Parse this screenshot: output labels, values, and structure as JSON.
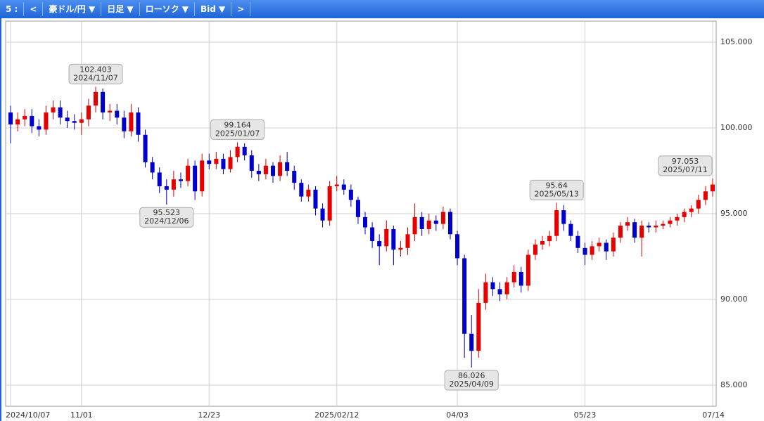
{
  "toolbar": {
    "items": [
      "5 :",
      "<",
      "豪ドル/円 ▼",
      "日足 ▼",
      "ローソク ▼",
      "Bid ▼",
      ">"
    ]
  },
  "chart_data": {
    "type": "candlestick",
    "up_color": "#e60000",
    "down_color": "#0000cc",
    "grid": true,
    "categories": [
      "2024/10/07",
      null,
      null,
      null,
      null,
      null,
      null,
      null,
      null,
      null,
      "11/01",
      null,
      null,
      null,
      null,
      null,
      null,
      null,
      null,
      null,
      null,
      null,
      null,
      null,
      null,
      null,
      null,
      null,
      "12/23",
      null,
      null,
      null,
      null,
      null,
      null,
      null,
      null,
      null,
      null,
      null,
      null,
      null,
      null,
      null,
      null,
      null,
      "2025/02/12",
      null,
      null,
      null,
      null,
      null,
      null,
      null,
      null,
      null,
      null,
      null,
      null,
      null,
      null,
      null,
      null,
      "04/03",
      null,
      null,
      null,
      null,
      null,
      null,
      null,
      null,
      null,
      null,
      null,
      null,
      null,
      null,
      null,
      null,
      null,
      "05/23",
      null,
      null,
      null,
      null,
      null,
      null,
      null,
      null,
      null,
      null,
      null,
      null,
      null,
      null,
      null,
      null,
      null,
      "07/14"
    ],
    "open": [
      100.9,
      100.2,
      100.5,
      100.7,
      100.1,
      99.9,
      100.9,
      101.2,
      100.6,
      100.4,
      100.3,
      100.5,
      101.3,
      102.1,
      100.9,
      101.0,
      100.6,
      99.8,
      100.9,
      99.6,
      98.0,
      97.4,
      96.6,
      96.4,
      97.0,
      96.9,
      97.8,
      96.3,
      98.1,
      97.9,
      98.2,
      97.6,
      98.3,
      98.9,
      98.4,
      97.5,
      97.3,
      97.8,
      97.2,
      98.0,
      97.5,
      96.8,
      96.0,
      96.4,
      95.3,
      94.6,
      96.6,
      96.7,
      96.4,
      95.8,
      94.8,
      94.2,
      93.4,
      93.1,
      94.1,
      92.9,
      93.0,
      93.8,
      94.8,
      94.1,
      94.6,
      94.4,
      95.1,
      93.8,
      92.4,
      88.0,
      87.0,
      89.8,
      91.0,
      90.6,
      90.3,
      91.0,
      91.6,
      90.8,
      92.6,
      93.2,
      93.4,
      93.7,
      95.2,
      94.4,
      93.7,
      93.0,
      92.6,
      93.1,
      93.3,
      92.8,
      93.6,
      94.3,
      94.5,
      93.6,
      94.3,
      94.2,
      94.3,
      94.4,
      94.6,
      94.8,
      95.1,
      95.3,
      95.8,
      96.3
    ],
    "high": [
      101.3,
      100.9,
      101.1,
      101.1,
      100.5,
      101.3,
      101.6,
      101.6,
      101.0,
      100.8,
      100.9,
      101.7,
      102.403,
      102.3,
      101.4,
      101.4,
      101.0,
      101.4,
      101.2,
      99.9,
      98.3,
      97.7,
      97.0,
      97.5,
      97.4,
      98.2,
      98.1,
      98.5,
      98.5,
      98.6,
      98.5,
      98.7,
      99.164,
      99.1,
      98.7,
      97.9,
      98.2,
      98.0,
      98.4,
      98.6,
      97.8,
      97.0,
      96.7,
      96.6,
      95.6,
      96.9,
      97.2,
      97.0,
      96.7,
      96.0,
      95.1,
      94.5,
      93.8,
      94.6,
      94.3,
      93.4,
      94.2,
      95.6,
      95.1,
      95.0,
      94.9,
      95.4,
      95.3,
      94.0,
      92.6,
      89.1,
      90.6,
      91.5,
      91.3,
      91.0,
      91.3,
      92.0,
      91.9,
      92.9,
      93.5,
      93.7,
      94.0,
      95.64,
      95.5,
      94.6,
      94.0,
      93.3,
      93.4,
      93.6,
      93.5,
      93.9,
      94.5,
      94.8,
      94.7,
      94.6,
      94.5,
      94.6,
      94.6,
      94.8,
      95.0,
      95.3,
      95.5,
      96.1,
      96.6,
      97.053
    ],
    "low": [
      99.1,
      99.8,
      100.1,
      99.7,
      99.5,
      99.6,
      100.5,
      100.2,
      100.0,
      99.9,
      99.6,
      100.1,
      100.9,
      100.5,
      100.4,
      100.2,
      99.4,
      99.5,
      99.2,
      97.7,
      97.0,
      96.2,
      95.523,
      96.0,
      96.5,
      96.6,
      95.8,
      96.0,
      97.6,
      97.6,
      97.3,
      97.4,
      98.0,
      98.1,
      97.1,
      96.9,
      97.0,
      96.8,
      96.9,
      97.2,
      96.4,
      95.7,
      95.7,
      94.9,
      94.2,
      94.3,
      96.3,
      96.1,
      95.4,
      94.4,
      93.8,
      93.0,
      92.0,
      92.8,
      92.0,
      92.5,
      92.6,
      93.4,
      93.7,
      93.8,
      94.0,
      94.1,
      93.5,
      92.0,
      86.6,
      86.026,
      86.6,
      89.4,
      90.2,
      89.9,
      90.0,
      90.7,
      90.4,
      90.5,
      92.3,
      92.9,
      93.1,
      93.4,
      94.0,
      93.4,
      92.7,
      92.0,
      92.3,
      92.8,
      92.3,
      92.5,
      93.3,
      94.0,
      93.3,
      92.5,
      93.9,
      93.9,
      94.1,
      94.2,
      94.3,
      94.5,
      94.8,
      95.0,
      95.5,
      96.0
    ],
    "close": [
      100.2,
      100.5,
      100.7,
      100.1,
      99.9,
      100.9,
      101.2,
      100.6,
      100.4,
      100.3,
      100.5,
      101.3,
      102.1,
      100.9,
      101.0,
      100.6,
      99.8,
      100.9,
      99.6,
      98.0,
      97.4,
      96.6,
      96.4,
      97.0,
      96.9,
      97.8,
      96.3,
      98.1,
      97.9,
      98.2,
      97.6,
      98.3,
      98.9,
      98.4,
      97.5,
      97.3,
      97.8,
      97.2,
      98.0,
      97.5,
      96.8,
      96.0,
      96.4,
      95.3,
      94.6,
      96.6,
      96.7,
      96.4,
      95.8,
      94.8,
      94.2,
      93.4,
      93.1,
      94.1,
      92.9,
      93.0,
      93.8,
      94.8,
      94.1,
      94.6,
      94.4,
      95.1,
      93.8,
      92.4,
      88.0,
      87.0,
      89.8,
      91.0,
      90.6,
      90.3,
      91.0,
      91.6,
      90.8,
      92.6,
      93.2,
      93.4,
      93.7,
      95.2,
      94.4,
      93.7,
      93.0,
      92.6,
      93.1,
      93.3,
      92.8,
      93.6,
      94.3,
      94.5,
      93.6,
      94.3,
      94.2,
      94.3,
      94.4,
      94.6,
      94.8,
      95.1,
      95.3,
      95.8,
      96.3,
      96.7
    ],
    "ylim": [
      83.77,
      106.23
    ],
    "yticks": [
      {
        "value": 85,
        "label": "85.000"
      },
      {
        "value": 90,
        "label": "90.000"
      },
      {
        "value": 95,
        "label": "95.000"
      },
      {
        "value": 100,
        "label": "100.000"
      },
      {
        "value": 105,
        "label": "105.000"
      }
    ],
    "annotations": [
      {
        "value": 102.403,
        "date": "2024/11/07"
      },
      {
        "value": 95.523,
        "date": "2024/12/06"
      },
      {
        "value": 99.164,
        "date": "2025/01/07"
      },
      {
        "value": 86.026,
        "date": "2025/04/09"
      },
      {
        "value": 95.64,
        "date": "2025/05/13"
      },
      {
        "value": 97.053,
        "date": "2025/07/11"
      }
    ]
  }
}
